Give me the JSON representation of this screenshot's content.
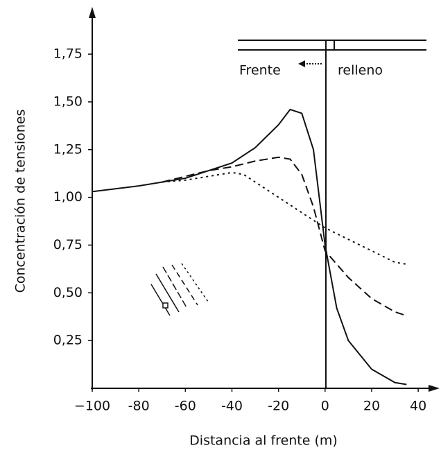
{
  "chart_data": {
    "type": "line",
    "y_label": "Concentración de tensiones",
    "x_label": "Distancia al frente (m)",
    "annotations": [
      "Frente",
      "relleno"
    ],
    "xlim": [
      -100,
      48
    ],
    "ylim": [
      0,
      1.95
    ],
    "xticks": [
      {
        "value": -100,
        "label": "−100"
      },
      -80,
      -60,
      -40,
      -20,
      0,
      20,
      40
    ],
    "yticks": [
      {
        "value": 0.25,
        "label": "0,25"
      },
      {
        "value": 0.5,
        "label": "0,50"
      },
      {
        "value": 0.75,
        "label": "0,75"
      },
      {
        "value": 1.0,
        "label": "1,00"
      },
      {
        "value": 1.25,
        "label": "1,25"
      },
      {
        "value": 1.5,
        "label": "1,50"
      },
      {
        "value": 1.75,
        "label": "1,75"
      }
    ],
    "series": [
      {
        "color": "#111",
        "dash": "solid",
        "x": [
          -100,
          -80,
          -60,
          -40,
          -30,
          -20,
          -15,
          -10,
          -5,
          0,
          5,
          10,
          20,
          30,
          35
        ],
        "values": [
          1.03,
          1.06,
          1.1,
          1.18,
          1.26,
          1.38,
          1.46,
          1.44,
          1.25,
          0.75,
          0.42,
          0.25,
          0.1,
          0.03,
          0.02
        ]
      },
      {
        "color": "#111",
        "dash": "dashed",
        "x": [
          -70,
          -60,
          -50,
          -40,
          -30,
          -20,
          -15,
          -10,
          -5,
          0,
          10,
          20,
          30,
          35
        ],
        "values": [
          1.08,
          1.11,
          1.14,
          1.16,
          1.19,
          1.21,
          1.2,
          1.12,
          0.95,
          0.72,
          0.58,
          0.47,
          0.4,
          0.38
        ]
      },
      {
        "color": "#111",
        "dash": "dotted",
        "x": [
          -70,
          -60,
          -50,
          -40,
          -35,
          -30,
          -20,
          -10,
          0,
          10,
          20,
          30,
          35
        ],
        "values": [
          1.08,
          1.09,
          1.11,
          1.13,
          1.12,
          1.08,
          1.0,
          0.92,
          0.84,
          0.78,
          0.72,
          0.66,
          0.65
        ]
      }
    ]
  }
}
